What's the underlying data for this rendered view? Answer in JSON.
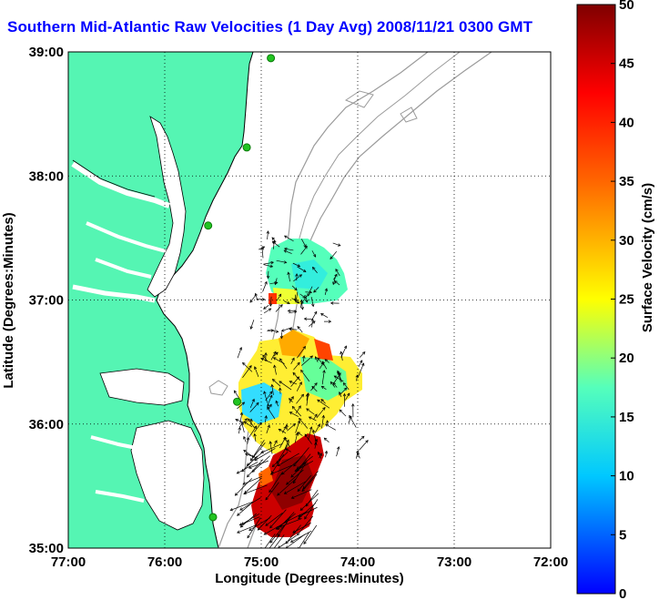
{
  "title": "Southern Mid-Atlantic Raw Velocities (1 Day Avg) 2008/11/21 0300 GMT",
  "colors": {
    "title": "#0000ff",
    "land": "#55f5b3",
    "coast": "#000000",
    "bathymetry": "#9b9b9b",
    "station": "#22c422"
  },
  "map": {
    "x_label": "Longitude (Degrees:Minutes)",
    "y_label": "Latitude (Degrees:Minutes)",
    "x_ticks": [
      {
        "value": -77,
        "label": "77:00"
      },
      {
        "value": -76,
        "label": "76:00"
      },
      {
        "value": -75,
        "label": "75:00"
      },
      {
        "value": -74,
        "label": "74:00"
      },
      {
        "value": -73,
        "label": "73:00"
      },
      {
        "value": -72,
        "label": "72:00"
      }
    ],
    "y_ticks": [
      {
        "value": 35,
        "label": "35:00"
      },
      {
        "value": 36,
        "label": "36:00"
      },
      {
        "value": 37,
        "label": "37:00"
      },
      {
        "value": 38,
        "label": "38:00"
      },
      {
        "value": 39,
        "label": "39:00"
      }
    ],
    "lon_range": [
      -77,
      -72
    ],
    "lat_range": [
      35,
      39
    ],
    "grid": "dotted"
  },
  "colorbar": {
    "label": "Surface Velocity (cm/s)",
    "range": [
      0,
      50
    ],
    "ticks": [
      {
        "value": 0,
        "label": "0"
      },
      {
        "value": 5,
        "label": "5"
      },
      {
        "value": 10,
        "label": "10"
      },
      {
        "value": 15,
        "label": "15"
      },
      {
        "value": 20,
        "label": "20"
      },
      {
        "value": 25,
        "label": "25"
      },
      {
        "value": 30,
        "label": "30"
      },
      {
        "value": 35,
        "label": "35"
      },
      {
        "value": 40,
        "label": "40"
      },
      {
        "value": 45,
        "label": "45"
      },
      {
        "value": 50,
        "label": "50"
      }
    ]
  },
  "stations": [
    {
      "lon": -74.9,
      "lat": 38.95
    },
    {
      "lon": -75.15,
      "lat": 38.23
    },
    {
      "lon": -75.55,
      "lat": 37.6
    },
    {
      "lon": -75.25,
      "lat": 36.18
    },
    {
      "lon": -75.5,
      "lat": 35.25
    }
  ],
  "current_fields": [
    {
      "name": "north-region",
      "lon": [
        -75.1,
        -74.15
      ],
      "lat": [
        36.72,
        37.5
      ],
      "speed_range": [
        12,
        22
      ]
    },
    {
      "name": "central-region",
      "lon": [
        -75.25,
        -73.95
      ],
      "lat": [
        35.72,
        36.55
      ],
      "speed_range": [
        10,
        30
      ]
    },
    {
      "name": "south-region",
      "lon": [
        -75.1,
        -74.4
      ],
      "lat": [
        35.1,
        35.9
      ],
      "speed_range": [
        40,
        50
      ]
    }
  ]
}
